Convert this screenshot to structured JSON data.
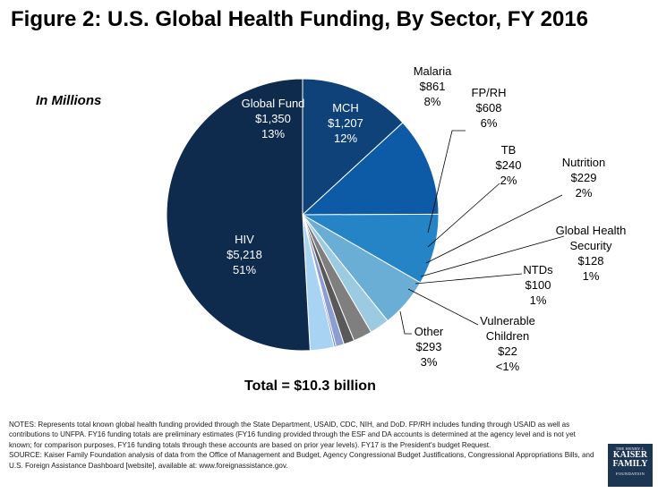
{
  "title": "Figure 2: U.S. Global Health Funding, By Sector, FY 2016",
  "unit_label": "In Millions",
  "total_label": "Total = $10.3 billion",
  "notes_line": "NOTES: Represents total known global health funding provided through the State Department, USAID, CDC, NIH, and DoD. FP/RH includes funding through USAID as well as contributions to UNFPA. FY16 funding totals are preliminary estimates (FY16 funding provided through the ESF and DA accounts is determined at the agency level and is not yet known; for comparison purposes, FY16 funding totals through these accounts are based on prior year levels). FY17 is the President's budget Request.",
  "source_line": "SOURCE: Kaiser Family Foundation analysis of data from the Office of Management and Budget, Agency Congressional Budget Justifications, Congressional Appropriations Bills, and U.S. Foreign Assistance Dashboard [website], available at: www.foreignassistance.gov.",
  "logo": {
    "top": "THE HENRY J.",
    "line1": "KAISER",
    "line2": "FAMILY",
    "bottom": "FOUNDATION"
  },
  "chart_data": {
    "type": "pie",
    "title": "Figure 2: U.S. Global Health Funding, By Sector, FY 2016",
    "unit": "In Millions",
    "total": "Total = $10.3 billion",
    "start": "12 o'clock",
    "direction": "clockwise",
    "slices": [
      {
        "name": "Global Fund",
        "value": 1350,
        "amount": "$1,350",
        "percent": "13%",
        "color": "#0f4278",
        "label_position": "inside"
      },
      {
        "name": "MCH",
        "value": 1207,
        "amount": "$1,207",
        "percent": "12%",
        "color": "#0d5aa7",
        "label_position": "inside"
      },
      {
        "name": "Malaria",
        "value": 861,
        "amount": "$861",
        "percent": "8%",
        "color": "#2484c6",
        "label_position": "outside"
      },
      {
        "name": "FP/RH",
        "value": 608,
        "amount": "$608",
        "percent": "6%",
        "color": "#6aadd5",
        "label_position": "outside"
      },
      {
        "name": "TB",
        "value": 240,
        "amount": "$240",
        "percent": "2%",
        "color": "#9ccae1",
        "label_position": "outside"
      },
      {
        "name": "Nutrition",
        "value": 229,
        "amount": "$229",
        "percent": "2%",
        "color": "#7f7f7f",
        "label_position": "outside"
      },
      {
        "name": "Global Health Security",
        "value": 128,
        "amount": "$128",
        "percent": "1%",
        "color": "#595959",
        "label_position": "outside"
      },
      {
        "name": "NTDs",
        "value": 100,
        "amount": "$100",
        "percent": "1%",
        "color": "#8c9dd2",
        "label_position": "outside"
      },
      {
        "name": "Vulnerable Children",
        "value": 22,
        "amount": "$22",
        "percent": "<1%",
        "color": "#5a6fb8",
        "label_position": "outside"
      },
      {
        "name": "Other",
        "value": 293,
        "amount": "$293",
        "percent": "3%",
        "color": "#a9d3f2",
        "label_position": "outside"
      },
      {
        "name": "HIV",
        "value": 5218,
        "amount": "$5,218",
        "percent": "51%",
        "color": "#0e2a4c",
        "label_position": "inside"
      }
    ]
  }
}
